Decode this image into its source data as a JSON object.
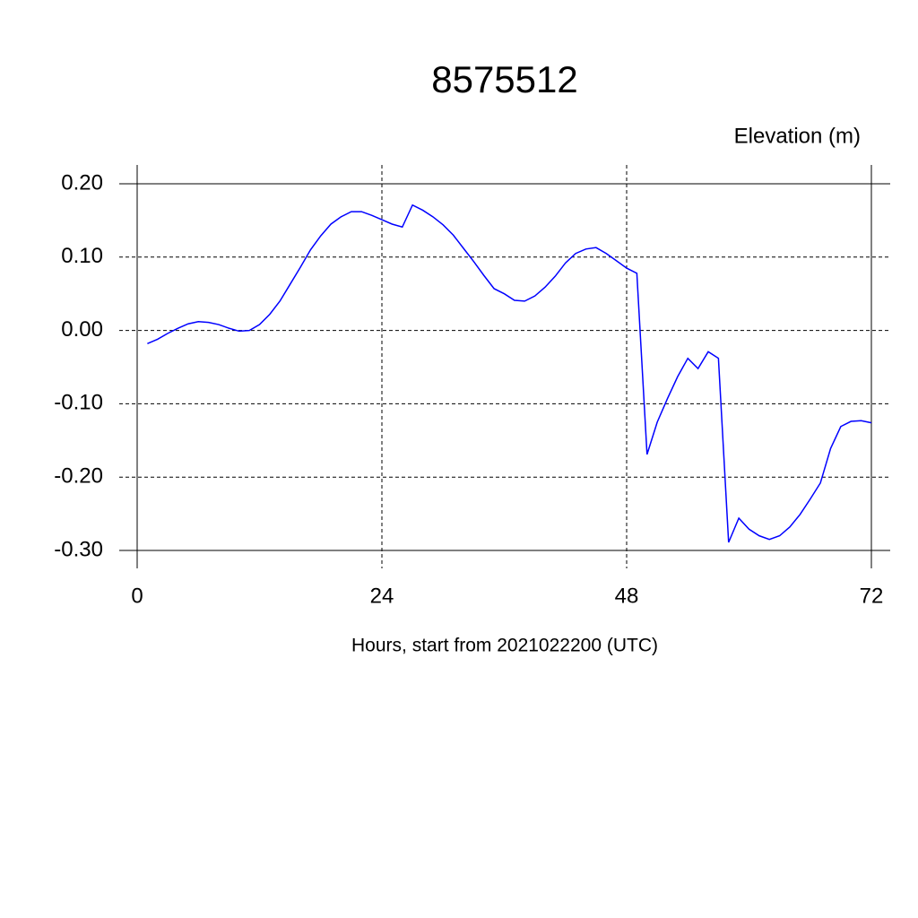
{
  "chart_data": {
    "type": "line",
    "title": "8575512",
    "y_label": "Elevation (m)",
    "x_label": "Hours, start from 2021022200 (UTC)",
    "x": [
      1,
      2,
      3,
      4,
      5,
      6,
      7,
      8,
      9,
      10,
      11,
      12,
      13,
      14,
      15,
      16,
      17,
      18,
      19,
      20,
      21,
      22,
      23,
      24,
      25,
      26,
      27,
      28,
      29,
      30,
      31,
      32,
      33,
      34,
      35,
      36,
      37,
      38,
      39,
      40,
      41,
      42,
      43,
      44,
      45,
      46,
      47,
      48,
      49,
      50,
      51,
      52,
      53,
      54,
      55,
      56,
      57,
      58,
      59,
      60,
      61,
      62,
      63,
      64,
      65,
      66,
      67,
      68,
      69,
      70,
      71,
      72
    ],
    "series": [
      {
        "color": "#0000ff",
        "values": [
          -0.018,
          -0.012,
          -0.004,
          0.003,
          0.009,
          0.012,
          0.011,
          0.008,
          0.003,
          -0.001,
          0.0,
          0.008,
          0.022,
          0.04,
          0.063,
          0.086,
          0.11,
          0.129,
          0.145,
          0.155,
          0.162,
          0.162,
          0.157,
          0.151,
          0.145,
          0.141,
          0.171,
          0.164,
          0.155,
          0.144,
          0.13,
          0.112,
          0.094,
          0.075,
          0.057,
          0.05,
          0.041,
          0.04,
          0.047,
          0.059,
          0.074,
          0.092,
          0.105,
          0.111,
          0.113,
          0.105,
          0.095,
          0.085,
          0.078,
          -0.169,
          -0.125,
          -0.093,
          -0.063,
          -0.038,
          -0.052,
          -0.029,
          -0.038,
          -0.289,
          -0.256,
          -0.271,
          -0.28,
          -0.285,
          -0.28,
          -0.268,
          -0.251,
          -0.23,
          -0.208,
          -0.161,
          -0.131,
          -0.124,
          -0.123,
          -0.126
        ]
      }
    ],
    "xlim": [
      0,
      72
    ],
    "xticks": [
      0,
      24,
      48,
      72
    ],
    "ylim": [
      -0.3,
      0.2
    ],
    "yticks": [
      {
        "value": -0.3,
        "label": "-0.30"
      },
      {
        "value": -0.2,
        "label": "-0.20"
      },
      {
        "value": -0.1,
        "label": "-0.10"
      },
      {
        "value": 0,
        "label": "0.00"
      },
      {
        "value": 0.1,
        "label": "0.10"
      },
      {
        "value": 0.2,
        "label": "0.20"
      }
    ],
    "grid": true
  }
}
